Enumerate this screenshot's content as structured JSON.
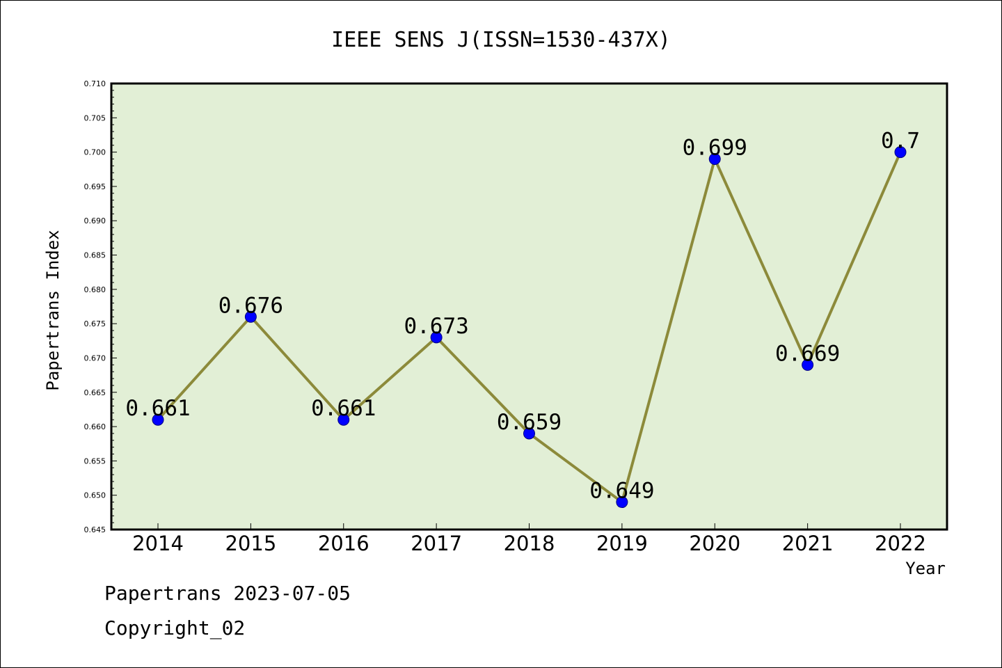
{
  "chart_data": {
    "type": "line",
    "title": "IEEE SENS J(ISSN=1530-437X)",
    "xlabel": "Year",
    "ylabel": "Papertrans Index",
    "categories": [
      "2014",
      "2015",
      "2016",
      "2017",
      "2018",
      "2019",
      "2020",
      "2021",
      "2022"
    ],
    "series": [
      {
        "values": [
          0.661,
          0.676,
          0.661,
          0.673,
          0.659,
          0.649,
          0.699,
          0.669,
          0.7
        ],
        "data_labels": [
          "0.661",
          "0.676",
          "0.661",
          "0.673",
          "0.659",
          "0.649",
          "0.699",
          "0.669",
          "0.7"
        ]
      }
    ],
    "ylim": [
      0.645,
      0.71
    ],
    "yticks": [
      "0.645",
      "0.650",
      "0.655",
      "0.660",
      "0.665",
      "0.670",
      "0.675",
      "0.680",
      "0.685",
      "0.690",
      "0.695",
      "0.700",
      "0.705",
      "0.710"
    ],
    "grid": false,
    "legend": "none"
  },
  "colors": {
    "plot_background": "#e2efd6",
    "line": "#8c8a3a",
    "marker": "#0000ff",
    "axis": "#000000"
  },
  "footer": {
    "date_text": "Papertrans 2023-07-05",
    "copyright_text": "Copyright_02"
  }
}
